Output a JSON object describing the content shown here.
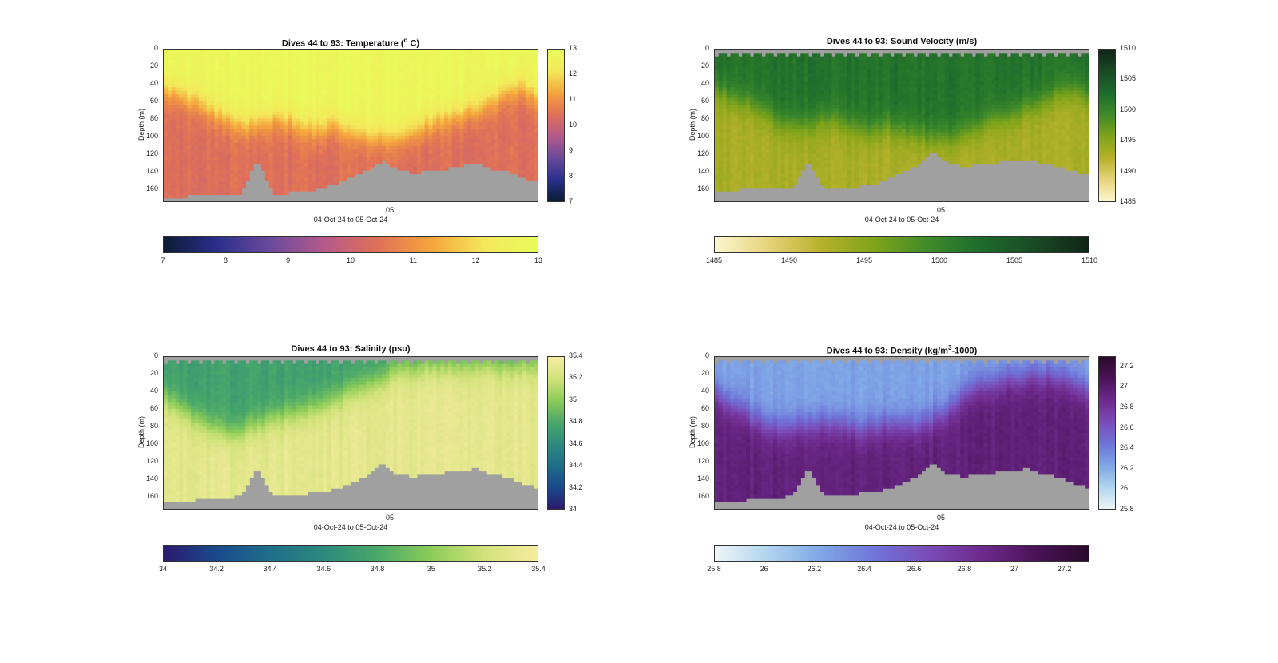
{
  "chart_data": [
    {
      "type": "heatmap",
      "title": "Dives 44 to 93: Temperature (",
      "title_sup": "o",
      "title_tail": " C)",
      "ylabel": "Depth (m)",
      "xlabel": "04-Oct-24 to 05-Oct-24",
      "x_ticks": [
        "05"
      ],
      "y_ticks": [
        "0",
        "20",
        "40",
        "60",
        "80",
        "100",
        "120",
        "140",
        "160"
      ],
      "y_range": [
        0,
        175
      ],
      "colorbar_range": [
        7,
        13
      ],
      "colorbar_ticks": [
        "7",
        "8",
        "9",
        "10",
        "11",
        "12",
        "13"
      ],
      "horizontal_ticks": [
        "7",
        "8",
        "9",
        "10",
        "11",
        "12",
        "13"
      ],
      "colormap": [
        "#0b1c33",
        "#2a2f8c",
        "#6a4a9c",
        "#b45a8a",
        "#e07058",
        "#f5a43c",
        "#f3e85a",
        "#e8fb5a"
      ],
      "mixed_layer_value": 12.8,
      "deep_value": 10.4,
      "thermocline_depth": [
        45,
        55,
        60,
        70,
        82,
        88,
        85,
        80,
        82,
        90,
        92,
        88,
        95,
        100,
        102,
        100,
        95,
        88,
        80,
        75,
        70,
        60,
        50,
        45,
        55
      ],
      "bottom_depth": [
        172,
        170,
        168,
        168,
        168,
        166,
        125,
        166,
        165,
        164,
        160,
        155,
        148,
        140,
        128,
        138,
        142,
        140,
        138,
        135,
        130,
        138,
        140,
        148,
        152
      ]
    },
    {
      "type": "heatmap",
      "title": "Dives 44 to 93: Sound Velocity (m/s)",
      "ylabel": "Depth (m)",
      "xlabel": "04-Oct-24 to 05-Oct-24",
      "x_ticks": [
        "05"
      ],
      "y_ticks": [
        "0",
        "20",
        "40",
        "60",
        "80",
        "100",
        "120",
        "140",
        "160"
      ],
      "y_range": [
        0,
        175
      ],
      "colorbar_range": [
        1485,
        1510
      ],
      "colorbar_ticks": [
        "1485",
        "1490",
        "1495",
        "1500",
        "1505",
        "1510"
      ],
      "horizontal_ticks": [
        "1485",
        "1490",
        "1495",
        "1500",
        "1505",
        "1510"
      ],
      "colormap": [
        "#fbf6d0",
        "#e6d37a",
        "#b6b12a",
        "#7fa31a",
        "#3f8a2a",
        "#1c6b2c",
        "#1a4a24",
        "#0f2416"
      ],
      "mixed_layer_value": 1502,
      "deep_value": 1493,
      "thermocline_depth": [
        45,
        55,
        60,
        70,
        82,
        88,
        85,
        80,
        82,
        90,
        92,
        88,
        95,
        100,
        102,
        100,
        95,
        88,
        80,
        75,
        70,
        60,
        50,
        45,
        55
      ],
      "bottom_depth": [
        165,
        162,
        160,
        160,
        160,
        160,
        125,
        160,
        160,
        158,
        155,
        150,
        142,
        132,
        118,
        130,
        135,
        132,
        130,
        128,
        125,
        130,
        135,
        140,
        145
      ]
    },
    {
      "type": "heatmap",
      "title": "Dives 44 to 93: Salinity (psu)",
      "ylabel": "Depth (m)",
      "xlabel": "04-Oct-24 to 05-Oct-24",
      "x_ticks": [
        "05"
      ],
      "y_ticks": [
        "0",
        "20",
        "40",
        "60",
        "80",
        "100",
        "120",
        "140",
        "160"
      ],
      "y_range": [
        0,
        175
      ],
      "colorbar_range": [
        34,
        35.4
      ],
      "colorbar_ticks": [
        "34",
        "34.2",
        "34.4",
        "34.6",
        "34.8",
        "35",
        "35.2",
        "35.4"
      ],
      "horizontal_ticks": [
        "34",
        "34.2",
        "34.4",
        "34.6",
        "34.8",
        "35",
        "35.2",
        "35.4"
      ],
      "colormap": [
        "#2a1a6e",
        "#1a4a8c",
        "#1f6e8a",
        "#2c8a7c",
        "#4aa86a",
        "#8ccc58",
        "#d2e27a",
        "#f6eca0"
      ],
      "mixed_layer_value": 34.75,
      "deep_value": 35.3,
      "thermocline_depth": [
        45,
        60,
        70,
        80,
        88,
        85,
        78,
        70,
        65,
        60,
        55,
        48,
        40,
        30,
        25,
        15,
        12,
        10,
        10,
        10,
        10,
        10,
        10,
        10,
        10
      ],
      "bottom_depth": [
        165,
        168,
        165,
        165,
        162,
        160,
        125,
        160,
        158,
        158,
        155,
        152,
        145,
        138,
        122,
        135,
        138,
        135,
        133,
        132,
        128,
        135,
        138,
        145,
        150
      ]
    },
    {
      "type": "heatmap",
      "title": "Dives 44 to 93: Density (kg/m",
      "title_sup": "3",
      "title_tail": "-1000)",
      "ylabel": "Depth (m)",
      "xlabel": "04-Oct-24 to 05-Oct-24",
      "x_ticks": [
        "05"
      ],
      "y_ticks": [
        "0",
        "20",
        "40",
        "60",
        "80",
        "100",
        "120",
        "140",
        "160"
      ],
      "y_range": [
        0,
        175
      ],
      "colorbar_range": [
        25.8,
        27.3
      ],
      "colorbar_ticks": [
        "25.8",
        "26",
        "26.2",
        "26.4",
        "26.6",
        "26.8",
        "27",
        "27.2"
      ],
      "horizontal_ticks": [
        "25.8",
        "26",
        "26.2",
        "26.4",
        "26.6",
        "26.8",
        "27",
        "27.2"
      ],
      "colormap": [
        "#eef6f6",
        "#b0d4ee",
        "#7fa6e6",
        "#6f74d8",
        "#7a4cb8",
        "#6e2a8c",
        "#4a1258",
        "#2a0a2a"
      ],
      "mixed_layer_value": 26.25,
      "deep_value": 26.95,
      "thermocline_depth": [
        40,
        55,
        65,
        75,
        82,
        80,
        78,
        75,
        78,
        82,
        80,
        78,
        80,
        78,
        72,
        60,
        45,
        35,
        28,
        25,
        22,
        20,
        25,
        30,
        40
      ],
      "bottom_depth": [
        165,
        168,
        165,
        165,
        162,
        160,
        125,
        160,
        158,
        158,
        155,
        152,
        145,
        138,
        122,
        135,
        138,
        135,
        133,
        132,
        128,
        135,
        138,
        145,
        150
      ]
    }
  ]
}
